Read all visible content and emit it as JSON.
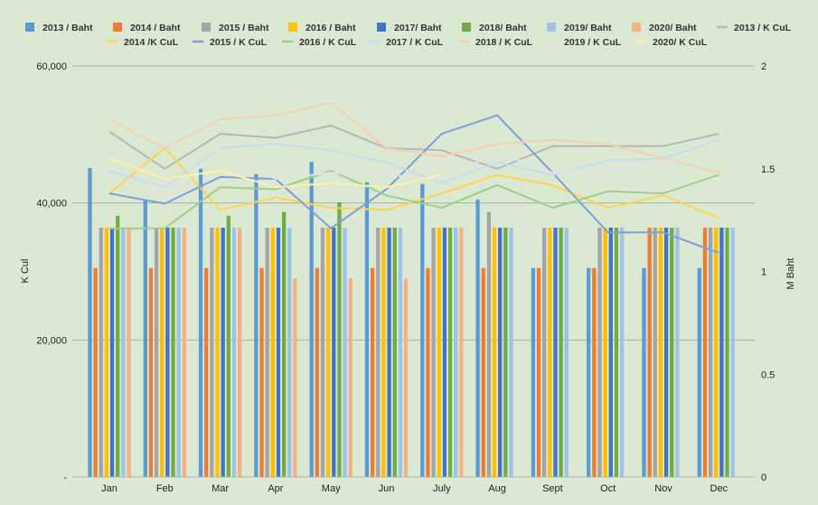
{
  "chart_data": {
    "type": "bar",
    "title": "",
    "categories": [
      "Jan",
      "Feb",
      "Mar",
      "Apr",
      "May",
      "Jun",
      "July",
      "Aug",
      "Sept",
      "Oct",
      "Nov",
      "Dec"
    ],
    "y_left": {
      "label": "K Cul",
      "min": 0,
      "max": 60000,
      "ticks": [
        {
          "v": 0,
          "label": "-"
        },
        {
          "v": 20000,
          "label": "20,000"
        },
        {
          "v": 40000,
          "label": "40,000"
        },
        {
          "v": 60000,
          "label": "60,000"
        }
      ]
    },
    "y_right": {
      "label": "M Baht",
      "min": 0,
      "max": 2,
      "ticks": [
        {
          "v": 0,
          "label": "0"
        },
        {
          "v": 0.5,
          "label": "0.5"
        },
        {
          "v": 1,
          "label": "1"
        },
        {
          "v": 1.5,
          "label": "1.5"
        },
        {
          "v": 2,
          "label": "2"
        }
      ]
    },
    "grid": true,
    "legend_position": "top",
    "bar_series": [
      {
        "name": "2013 / Baht",
        "color": "#5b9bd5",
        "values": [
          45100,
          40500,
          45000,
          44200,
          46000,
          43000,
          42800,
          40500,
          30500,
          30500,
          30500,
          30500
        ]
      },
      {
        "name": "2014 / Baht",
        "color": "#ed7d31",
        "values": [
          30500,
          30500,
          30500,
          30500,
          30500,
          30500,
          30500,
          30500,
          30500,
          30500,
          36400,
          36400
        ]
      },
      {
        "name": "2015 / Baht",
        "color": "#a5a5a5",
        "values": [
          36400,
          36400,
          36400,
          36400,
          36400,
          36400,
          36400,
          38700,
          36400,
          36400,
          36400,
          36400
        ]
      },
      {
        "name": "2016 / Baht",
        "color": "#ffc000",
        "values": [
          36400,
          36400,
          36400,
          36400,
          36400,
          36400,
          36400,
          36400,
          36400,
          36400,
          36400,
          36400
        ]
      },
      {
        "name": "2017/ Baht",
        "color": "#4472c4",
        "values": [
          36400,
          36400,
          36400,
          36400,
          36400,
          36400,
          36400,
          36400,
          36400,
          36400,
          36400,
          36400
        ]
      },
      {
        "name": "2018/ Baht",
        "color": "#70ad47",
        "values": [
          38100,
          36400,
          38100,
          38700,
          40100,
          36400,
          36400,
          36400,
          36400,
          36400,
          36400,
          36400
        ]
      },
      {
        "name": "2019/ Baht",
        "color": "#9dc3e6",
        "values": [
          36400,
          36400,
          36400,
          36400,
          36400,
          36400,
          36400,
          36400,
          36400,
          36400,
          36400,
          36400
        ]
      },
      {
        "name": "2020/ Baht",
        "color": "#f4b183",
        "values": [
          36400,
          36400,
          36400,
          29000,
          29000,
          29000,
          36400,
          null,
          null,
          null,
          null,
          null
        ]
      }
    ],
    "line_series": [
      {
        "name": "2013 / K CuL",
        "color": "#b7b7b7",
        "values": [
          1.68,
          1.5,
          1.67,
          1.65,
          1.71,
          1.6,
          1.59,
          1.5,
          1.61,
          1.61,
          1.61,
          1.67
        ]
      },
      {
        "name": "2014 /K CuL",
        "color": "#ffd34d",
        "values": [
          1.38,
          1.6,
          1.3,
          1.36,
          1.31,
          1.3,
          1.38,
          1.47,
          1.42,
          1.31,
          1.37,
          1.26
        ]
      },
      {
        "name": "2015 / K CuL",
        "color": "#7f9fd8",
        "values": [
          1.38,
          1.33,
          1.46,
          1.45,
          1.21,
          1.4,
          1.67,
          1.76,
          1.48,
          1.19,
          1.19,
          1.09
        ]
      },
      {
        "name": "2016 / K CuL",
        "color": "#9ecf8a",
        "values": [
          1.21,
          1.21,
          1.41,
          1.4,
          1.49,
          1.37,
          1.31,
          1.42,
          1.31,
          1.39,
          1.38,
          1.47
        ]
      },
      {
        "name": "2017 / K CuL",
        "color": "#c5dcf0",
        "values": [
          1.49,
          1.41,
          1.6,
          1.62,
          1.59,
          1.53,
          1.43,
          1.53,
          1.47,
          1.54,
          1.55,
          1.64
        ]
      },
      {
        "name": "2018 / K CuL",
        "color": "#f8cfae",
        "values": [
          1.74,
          1.6,
          1.74,
          1.76,
          1.82,
          1.6,
          1.56,
          1.62,
          1.64,
          1.62,
          1.55,
          1.48
        ]
      },
      {
        "name": "2019 / K CuL",
        "color": "#e3e3e3",
        "values": [
          1.66,
          1.35,
          1.6,
          1.45,
          1.48,
          1.47,
          1.45,
          1.58,
          1.48,
          1.5,
          1.53,
          1.58
        ]
      },
      {
        "name": "2020/ K CuL",
        "color": "#fff0a8",
        "values": [
          1.55,
          1.45,
          1.49,
          1.41,
          1.43,
          1.41,
          1.47,
          null,
          null,
          null,
          null,
          null
        ]
      }
    ]
  }
}
